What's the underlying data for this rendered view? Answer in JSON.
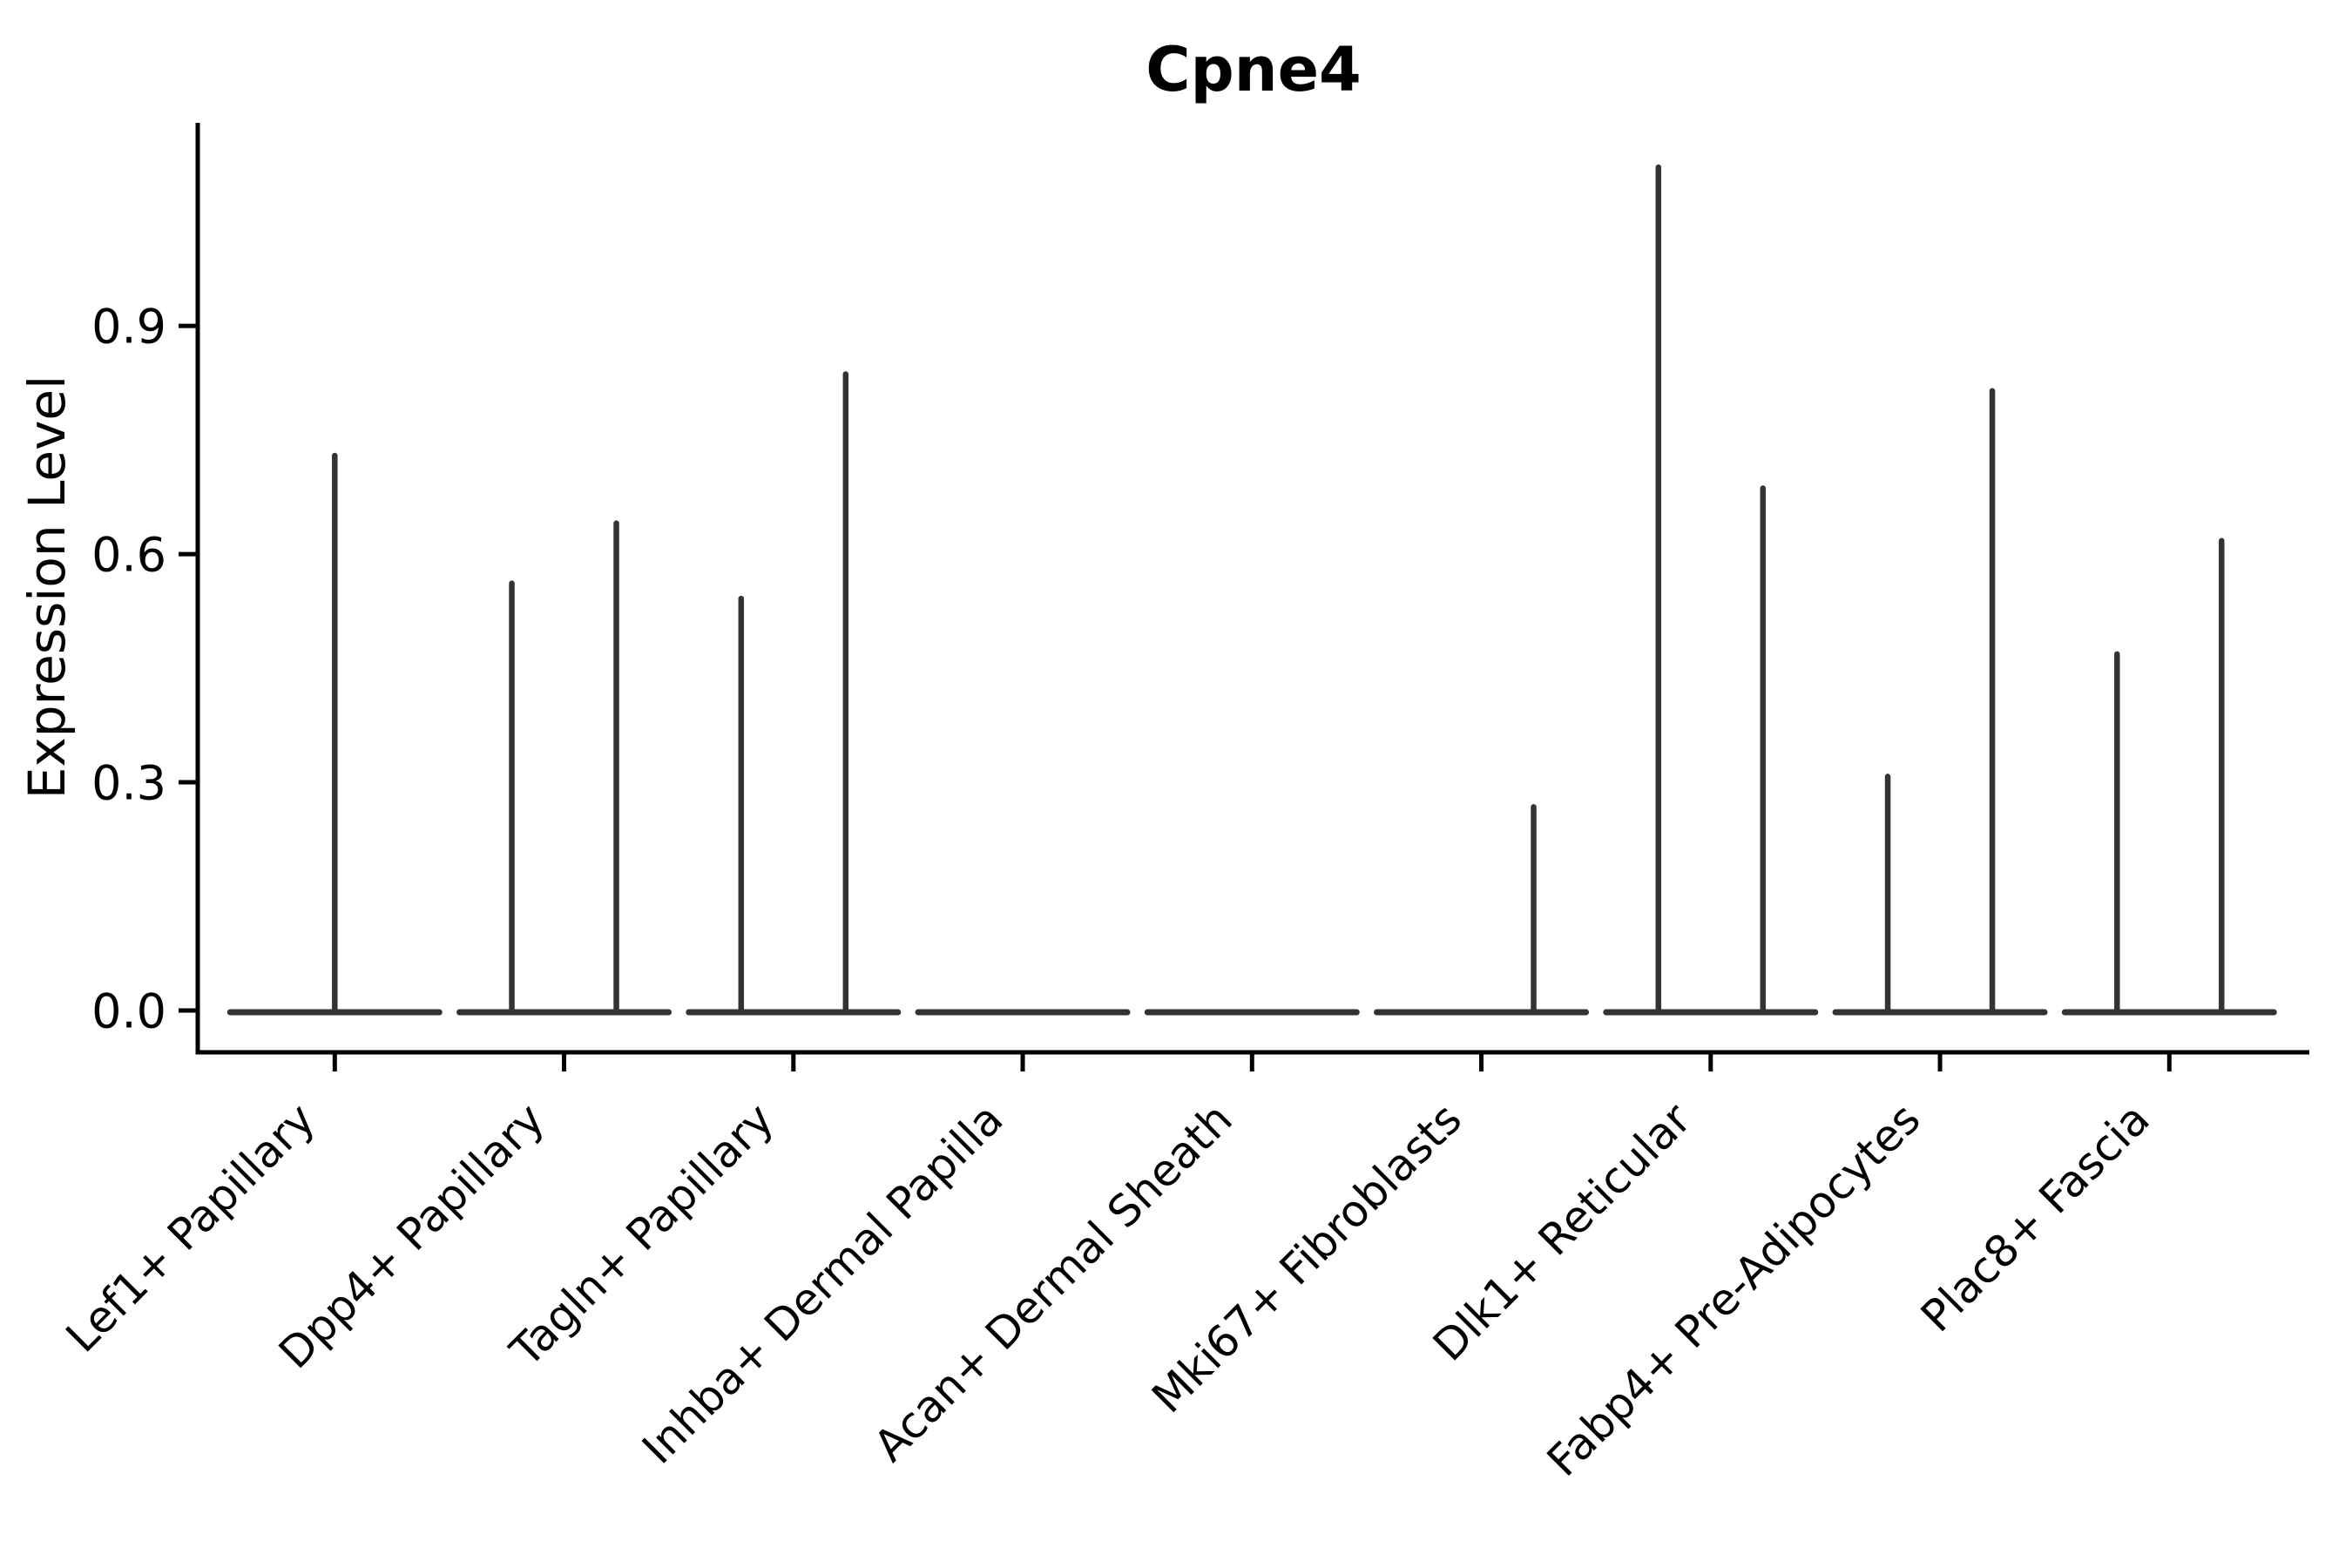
{
  "chart_data": {
    "type": "violin",
    "title": "Cpne4",
    "xlabel": "",
    "ylabel": "Expression Level",
    "grid": false,
    "legend": null,
    "ylim": [
      -0.055,
      1.167
    ],
    "ytick_values": [
      0.0,
      0.3,
      0.6,
      0.9
    ],
    "yticks": [
      "0.0",
      "0.3",
      "0.6",
      "0.9"
    ],
    "categories": [
      "Lef1+ Papillary",
      "Dpp4+ Papillary",
      "Tagln+ Papillary",
      "Inhba+ Dermal Papilla",
      "Acan+ Dermal Sheath",
      "Mki67+ Fibroblasts",
      "Dlk1+ Reticular",
      "Fabp4+ Pre-Adipocytes",
      "Plac8+ Fascia"
    ],
    "violins": [
      {
        "category": "Lef1+ Papillary",
        "baseline_value": 0.0,
        "spikes": [
          {
            "pos": "center",
            "value": 0.733
          }
        ]
      },
      {
        "category": "Dpp4+ Papillary",
        "baseline_value": 0.0,
        "spikes": [
          {
            "pos": "left",
            "value": 0.565
          },
          {
            "pos": "right",
            "value": 0.644
          }
        ]
      },
      {
        "category": "Tagln+ Papillary",
        "baseline_value": 0.0,
        "spikes": [
          {
            "pos": "left",
            "value": 0.545
          },
          {
            "pos": "right",
            "value": 0.84
          }
        ]
      },
      {
        "category": "Inhba+ Dermal Papilla",
        "baseline_value": 0.0,
        "spikes": []
      },
      {
        "category": "Acan+ Dermal Sheath",
        "baseline_value": 0.0,
        "spikes": []
      },
      {
        "category": "Mki67+ Fibroblasts",
        "baseline_value": 0.0,
        "spikes": [
          {
            "pos": "right",
            "value": 0.271
          }
        ]
      },
      {
        "category": "Dlk1+ Reticular",
        "baseline_value": 0.0,
        "spikes": [
          {
            "pos": "left",
            "value": 1.112
          },
          {
            "pos": "right",
            "value": 0.69
          }
        ]
      },
      {
        "category": "Fabp4+ Pre-Adipocytes",
        "baseline_value": 0.0,
        "spikes": [
          {
            "pos": "left",
            "value": 0.311
          },
          {
            "pos": "right",
            "value": 0.818
          }
        ]
      },
      {
        "category": "Plac8+ Fascia",
        "baseline_value": 0.0,
        "spikes": [
          {
            "pos": "left",
            "value": 0.472
          },
          {
            "pos": "right",
            "value": 0.621
          }
        ]
      }
    ],
    "colors": {
      "violin_stroke": "#333333",
      "axis": "#000000",
      "text": "#000000",
      "background": "#ffffff"
    }
  }
}
